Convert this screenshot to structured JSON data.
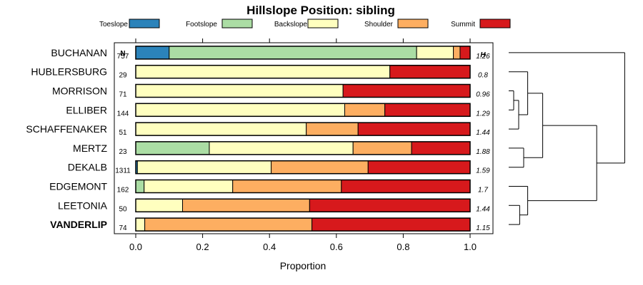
{
  "chart_data": {
    "type": "bar",
    "stacked": true,
    "orientation": "horizontal",
    "title": "Hillslope Position: sibling",
    "xlabel": "Proportion",
    "ylabel": "",
    "xlim": [
      0,
      1
    ],
    "xticks": [
      "0.0",
      "0.2",
      "0.4",
      "0.6",
      "0.8",
      "1.0"
    ],
    "tick_values": [
      0,
      0.2,
      0.4,
      0.6,
      0.8,
      1.0
    ],
    "n_header": "N",
    "h_header": "H",
    "legend_position": "top",
    "series": [
      {
        "name": "Toeslope",
        "color": "#2b83ba"
      },
      {
        "name": "Footslope",
        "color": "#abdda4"
      },
      {
        "name": "Backslope",
        "color": "#ffffbf"
      },
      {
        "name": "Shoulder",
        "color": "#fdae61"
      },
      {
        "name": "Summit",
        "color": "#d7191c"
      }
    ],
    "rows": [
      {
        "name": "BUCHANAN",
        "n": "757",
        "h": "1.26",
        "bold": false,
        "values": [
          0.1,
          0.74,
          0.11,
          0.02,
          0.03
        ]
      },
      {
        "name": "HUBLERSBURG",
        "n": "29",
        "h": "0.8",
        "bold": false,
        "values": [
          0.0,
          0.0,
          0.76,
          0.0,
          0.24
        ]
      },
      {
        "name": "MORRISON",
        "n": "71",
        "h": "0.96",
        "bold": false,
        "values": [
          0.0,
          0.0,
          0.62,
          0.0,
          0.38
        ]
      },
      {
        "name": "ELLIBER",
        "n": "144",
        "h": "1.29",
        "bold": false,
        "values": [
          0.0,
          0.0,
          0.625,
          0.12,
          0.255
        ]
      },
      {
        "name": "SCHAFFENAKER",
        "n": "51",
        "h": "1.44",
        "bold": false,
        "values": [
          0.0,
          0.0,
          0.51,
          0.155,
          0.335
        ]
      },
      {
        "name": "MERTZ",
        "n": "23",
        "h": "1.88",
        "bold": false,
        "values": [
          0.0,
          0.22,
          0.43,
          0.175,
          0.175
        ]
      },
      {
        "name": "DEKALB",
        "n": "1311",
        "h": "1.59",
        "bold": false,
        "values": [
          0.005,
          0.0,
          0.4,
          0.29,
          0.305
        ]
      },
      {
        "name": "EDGEMONT",
        "n": "162",
        "h": "1.7",
        "bold": false,
        "values": [
          0.0,
          0.025,
          0.265,
          0.325,
          0.385
        ]
      },
      {
        "name": "LEETONIA",
        "n": "50",
        "h": "1.44",
        "bold": false,
        "values": [
          0.0,
          0.0,
          0.14,
          0.38,
          0.48
        ]
      },
      {
        "name": "VANDERLIP",
        "n": "74",
        "h": "1.15",
        "bold": true,
        "values": [
          0.0,
          0.0,
          0.027,
          0.5,
          0.473
        ]
      }
    ],
    "dendrogram": {
      "merges": [
        {
          "a": 2,
          "b": 3,
          "h": 0.25
        },
        {
          "a": -1,
          "b": 4,
          "h": 0.5
        },
        {
          "a": 1,
          "b": -2,
          "h": 0.95
        },
        {
          "a": 8,
          "b": 9,
          "h": 0.55
        },
        {
          "a": 7,
          "b": -4,
          "h": 0.95
        },
        {
          "a": 5,
          "b": 6,
          "h": 0.75
        },
        {
          "a": -3,
          "b": -6,
          "h": 1.7
        },
        {
          "a": -7,
          "b": -5,
          "h": 4.4
        },
        {
          "a": 0,
          "b": -8,
          "h": 5.8
        }
      ]
    }
  }
}
